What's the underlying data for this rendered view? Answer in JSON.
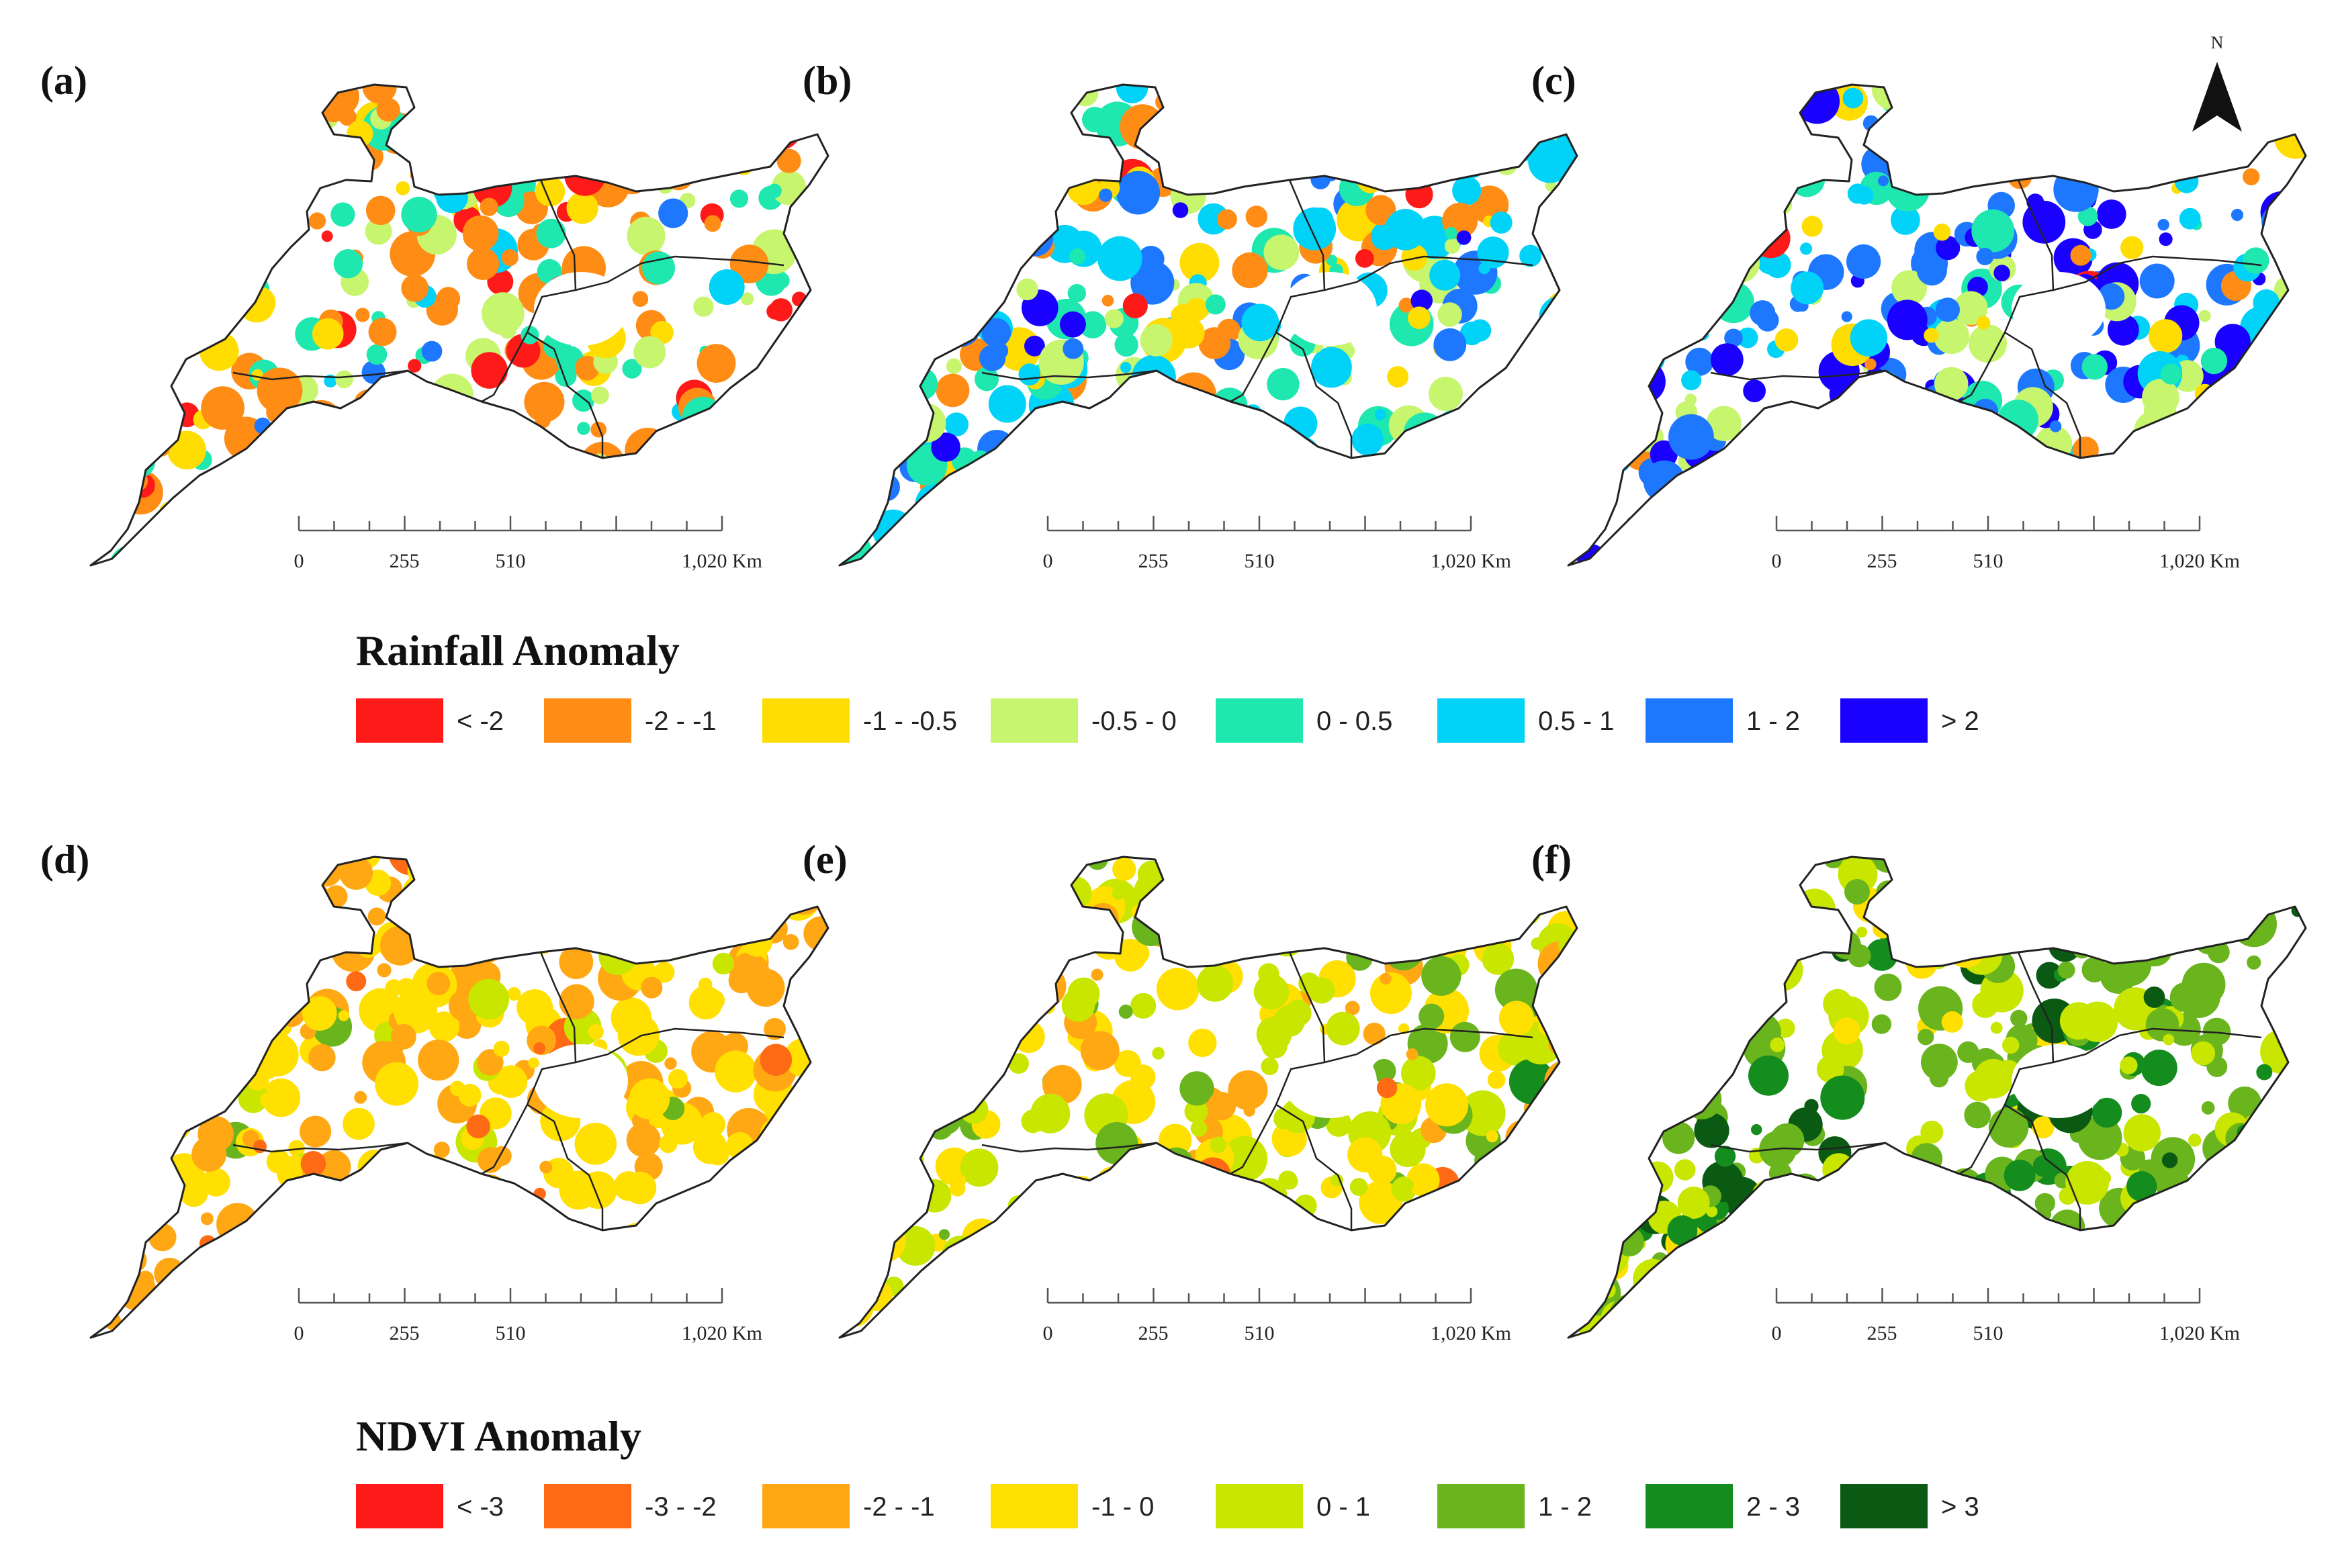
{
  "colors": {
    "rain": [
      "#ff1a1a",
      "#ff8c14",
      "#ffdd00",
      "#c8f56e",
      "#1ee8b0",
      "#00d2f8",
      "#1e78ff",
      "#1a00ff"
    ],
    "ndvi": [
      "#ff1a1a",
      "#ff6a14",
      "#ffa814",
      "#ffe000",
      "#c8e600",
      "#6ab41e",
      "#148c1e",
      "#0a5a14"
    ]
  },
  "panels": [
    {
      "label": "(a)",
      "legend": "rain",
      "weights": [
        10,
        30,
        10,
        12,
        16,
        4,
        1,
        1
      ]
    },
    {
      "label": "(b)",
      "legend": "rain",
      "weights": [
        3,
        14,
        10,
        12,
        18,
        26,
        14,
        2
      ]
    },
    {
      "label": "(c)",
      "legend": "rain",
      "weights": [
        1,
        4,
        8,
        14,
        10,
        16,
        26,
        24
      ]
    },
    {
      "label": "(d)",
      "legend": "ndvi",
      "weights": [
        0,
        4,
        40,
        48,
        6,
        1,
        0,
        0
      ]
    },
    {
      "label": "(e)",
      "legend": "ndvi",
      "weights": [
        0,
        1,
        10,
        30,
        42,
        14,
        2,
        0
      ]
    },
    {
      "label": "(f)",
      "legend": "ndvi",
      "weights": [
        0,
        0,
        1,
        8,
        26,
        40,
        16,
        9
      ]
    }
  ],
  "scalebar": {
    "t0": "0",
    "t1": "255",
    "t2": "510",
    "t3": "1,020 Km"
  },
  "north": "N",
  "rainfall_legend": {
    "title": "Rainfall Anomaly",
    "items": [
      "< -2",
      "-2 - -1",
      "-1 - -0.5",
      "-0.5 - 0",
      "0 - 0.5",
      "0.5 - 1",
      "1 - 2",
      "> 2"
    ]
  },
  "ndvi_legend": {
    "title": "NDVI Anomaly",
    "items": [
      "< -3",
      "-3 - -2",
      "-2 - -1",
      "-1 - 0",
      "0 - 1",
      "1 - 2",
      "2 - 3",
      "> 3"
    ]
  }
}
